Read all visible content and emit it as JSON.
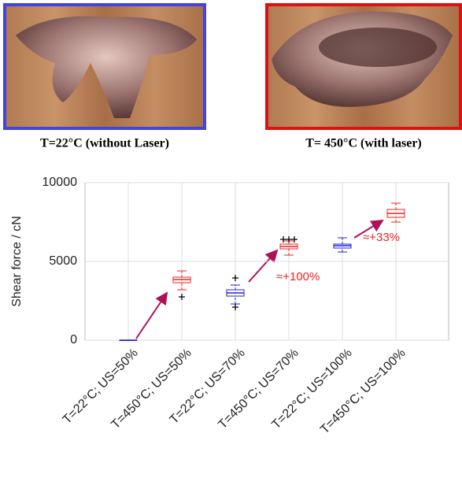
{
  "images": [
    {
      "caption": "T=22°C (without Laser)",
      "border": "#4444dd"
    },
    {
      "caption": "T= 450°C (with laser)",
      "border": "#dd1111"
    }
  ],
  "chart_data": {
    "type": "box",
    "ylabel": "Shear force / cN",
    "categories": [
      "T=22°C; US=50%",
      "T=450°C; US=50%",
      "T=22°C; US=70%",
      "T=450°C; US=70%",
      "T=22°C; US=100%",
      "T=450°C; US=100%"
    ],
    "boxes": [
      {
        "color": "#2222dd",
        "min": 0,
        "q1": 0,
        "median": 0,
        "q3": 0,
        "max": 0,
        "outliers": []
      },
      {
        "color": "#ee2222",
        "min": 3200,
        "q1": 3650,
        "median": 3850,
        "q3": 4000,
        "max": 4400,
        "outliers": [
          2750
        ]
      },
      {
        "color": "#2222dd",
        "min": 2300,
        "q1": 2800,
        "median": 3000,
        "q3": 3200,
        "max": 3500,
        "outliers": [
          3950,
          2100
        ]
      },
      {
        "color": "#ee2222",
        "min": 5400,
        "q1": 5800,
        "median": 5950,
        "q3": 6100,
        "max": 6300,
        "outliers": [
          6400,
          6400,
          6400
        ]
      },
      {
        "color": "#2222dd",
        "min": 5600,
        "q1": 5850,
        "median": 6000,
        "q3": 6100,
        "max": 6500,
        "outliers": []
      },
      {
        "color": "#ee2222",
        "min": 7500,
        "q1": 7800,
        "median": 8050,
        "q3": 8300,
        "max": 8700,
        "outliers": []
      }
    ],
    "annotations": [
      {
        "text": "≈+100%",
        "color": "#ee2222"
      },
      {
        "text": "≈+33%",
        "color": "#ee2222"
      }
    ],
    "ylim": [
      0,
      10000
    ],
    "yticks": [
      0,
      5000,
      10000
    ],
    "grid": true
  }
}
